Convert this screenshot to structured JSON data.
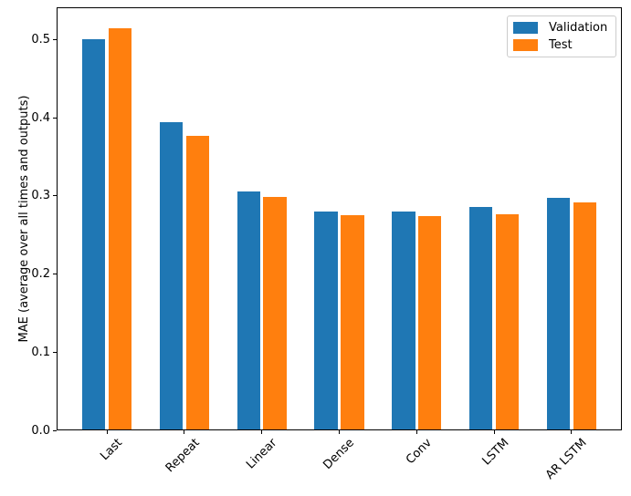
{
  "chart_data": {
    "type": "bar",
    "title": "",
    "xlabel": "",
    "ylabel": "MAE (average over all times and outputs)",
    "categories": [
      "Last",
      "Repeat",
      "Linear",
      "Dense",
      "Conv",
      "LSTM",
      "AR LSTM"
    ],
    "series": [
      {
        "name": "Validation",
        "color": "#1f77b4",
        "values": [
          0.501,
          0.395,
          0.306,
          0.28,
          0.28,
          0.286,
          0.298
        ]
      },
      {
        "name": "Test",
        "color": "#ff7f0e",
        "values": [
          0.515,
          0.377,
          0.299,
          0.276,
          0.274,
          0.277,
          0.292
        ]
      }
    ],
    "ylim": [
      0,
      0.5415
    ],
    "yticks": [
      0.0,
      0.1,
      0.2,
      0.3,
      0.4,
      0.5
    ],
    "ytick_labels": [
      "0.0",
      "0.1",
      "0.2",
      "0.3",
      "0.4",
      "0.5"
    ],
    "xtick_rotation": 45,
    "grid": false,
    "bar_width": 0.3,
    "bar_group_offset": 0.17,
    "legend": {
      "position": "upper right",
      "entries": [
        "Validation",
        "Test"
      ]
    },
    "colors": {
      "axis": "#000000",
      "text": "#000000",
      "background": "#ffffff",
      "legend_border": "#cccccc"
    }
  }
}
